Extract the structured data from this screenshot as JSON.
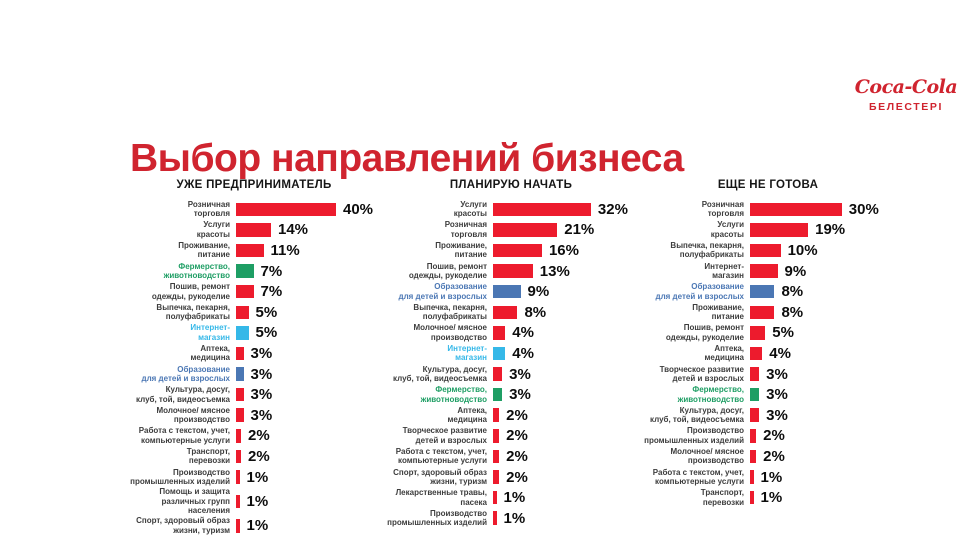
{
  "slide": {
    "title": "Выбор направлений бизнеса"
  },
  "logo": {
    "brand": "Coca-Cola",
    "subtitle": "БЕЛЕСТЕРІ"
  },
  "palette": {
    "red": "#ED1B2D",
    "green": "#1E9E64",
    "cyan": "#35B8E8",
    "blue": "#4B77B4",
    "title_red": "#D0242F",
    "logo_red": "#D0242F",
    "label_default": "#3D3D3D",
    "header_text": "#161616",
    "value_text": "#0D0D0D"
  },
  "chart_data": [
    {
      "type": "bar",
      "orientation": "horizontal",
      "title": "УЖЕ ПРЕДПРИНИМАТЕЛЬ",
      "unit": "%",
      "value_range": [
        0,
        40
      ],
      "bars": [
        {
          "label": "Розничная\nторговля",
          "value": 40,
          "color": "red"
        },
        {
          "label": "Услуги\nкрасоты",
          "value": 14,
          "color": "red"
        },
        {
          "label": "Проживание,\nпитание",
          "value": 11,
          "color": "red"
        },
        {
          "label": "Фермерство,\nживотноводство",
          "value": 7,
          "color": "green",
          "label_color": "green"
        },
        {
          "label": "Пошив, ремонт\nодежды, рукоделие",
          "value": 7,
          "color": "red"
        },
        {
          "label": "Выпечка, пекарня,\nполуфабрикаты",
          "value": 5,
          "color": "red"
        },
        {
          "label": "Интернет-\nмагазин",
          "value": 5,
          "color": "cyan",
          "label_color": "cyan"
        },
        {
          "label": "Аптека,\nмедицина",
          "value": 3,
          "color": "red"
        },
        {
          "label": "Образование\nдля детей и взрослых",
          "value": 3,
          "color": "blue",
          "label_color": "blue"
        },
        {
          "label": "Культура, досуг,\nклуб, той, видеосъемка",
          "value": 3,
          "color": "red"
        },
        {
          "label": "Молочное/ мясное\nпроизводство",
          "value": 3,
          "color": "red"
        },
        {
          "label": "Работа с текстом, учет,\nкомпьютерные услуги",
          "value": 2,
          "color": "red"
        },
        {
          "label": "Транспорт,\nперевозки",
          "value": 2,
          "color": "red"
        },
        {
          "label": "Производство\nпромышленных изделий",
          "value": 1,
          "color": "red"
        },
        {
          "label": "Помощь и защита\nразличных групп\nнаселения",
          "value": 1,
          "color": "red"
        },
        {
          "label": "Спорт, здоровый образ\nжизни, туризм",
          "value": 1,
          "color": "red"
        }
      ]
    },
    {
      "type": "bar",
      "orientation": "horizontal",
      "title": "ПЛАНИРУЮ НАЧАТЬ",
      "unit": "%",
      "value_range": [
        0,
        32
      ],
      "bars": [
        {
          "label": "Услуги\nкрасоты",
          "value": 32,
          "color": "red"
        },
        {
          "label": "Розничная\nторговля",
          "value": 21,
          "color": "red"
        },
        {
          "label": "Проживание,\nпитание",
          "value": 16,
          "color": "red"
        },
        {
          "label": "Пошив, ремонт\nодежды, рукоделие",
          "value": 13,
          "color": "red"
        },
        {
          "label": "Образование\nдля детей и взрослых",
          "value": 9,
          "color": "blue",
          "label_color": "blue"
        },
        {
          "label": "Выпечка, пекарня,\nполуфабрикаты",
          "value": 8,
          "color": "red"
        },
        {
          "label": "Молочное/ мясное\nпроизводство",
          "value": 4,
          "color": "red"
        },
        {
          "label": "Интернет-\nмагазин",
          "value": 4,
          "color": "cyan",
          "label_color": "cyan"
        },
        {
          "label": "Культура, досуг,\nклуб, той, видеосъемка",
          "value": 3,
          "color": "red"
        },
        {
          "label": "Фермерство,\nживотноводство",
          "value": 3,
          "color": "green",
          "label_color": "green"
        },
        {
          "label": "Аптека,\nмедицина",
          "value": 2,
          "color": "red"
        },
        {
          "label": "Творческое развитие\nдетей и взрослых",
          "value": 2,
          "color": "red"
        },
        {
          "label": "Работа с текстом, учет,\nкомпьютерные услуги",
          "value": 2,
          "color": "red"
        },
        {
          "label": "Спорт, здоровый образ\nжизни, туризм",
          "value": 2,
          "color": "red"
        },
        {
          "label": "Лекарственные травы,\nпасека",
          "value": 1,
          "color": "red"
        },
        {
          "label": "Производство\nпромышленных изделий",
          "value": 1,
          "color": "red"
        }
      ]
    },
    {
      "type": "bar",
      "orientation": "horizontal",
      "title": "ЕЩЕ НЕ ГОТОВА",
      "unit": "%",
      "value_range": [
        0,
        30
      ],
      "bars": [
        {
          "label": "Розничная\nторговля",
          "value": 30,
          "color": "red"
        },
        {
          "label": "Услуги\nкрасоты",
          "value": 19,
          "color": "red"
        },
        {
          "label": "Выпечка, пекарня,\nполуфабрикаты",
          "value": 10,
          "color": "red"
        },
        {
          "label": "Интернет-\nмагазин",
          "value": 9,
          "color": "red"
        },
        {
          "label": "Образование\nдля детей и взрослых",
          "value": 8,
          "color": "blue",
          "label_color": "blue"
        },
        {
          "label": "Проживание,\nпитание",
          "value": 8,
          "color": "red"
        },
        {
          "label": "Пошив, ремонт\nодежды, рукоделие",
          "value": 5,
          "color": "red"
        },
        {
          "label": "Аптека,\nмедицина",
          "value": 4,
          "color": "red"
        },
        {
          "label": "Творческое развитие\nдетей и взрослых",
          "value": 3,
          "color": "red"
        },
        {
          "label": "Фермерство,\nживотноводство",
          "value": 3,
          "color": "green",
          "label_color": "green"
        },
        {
          "label": "Культура, досуг,\nклуб, той, видеосъемка",
          "value": 3,
          "color": "red"
        },
        {
          "label": "Производство\nпромышленных изделий",
          "value": 2,
          "color": "red"
        },
        {
          "label": "Молочное/ мясное\nпроизводство",
          "value": 2,
          "color": "red"
        },
        {
          "label": "Работа с текстом, учет,\nкомпьютерные услуги",
          "value": 1,
          "color": "red"
        },
        {
          "label": "Транспорт,\nперевозки",
          "value": 1,
          "color": "red"
        }
      ]
    }
  ]
}
